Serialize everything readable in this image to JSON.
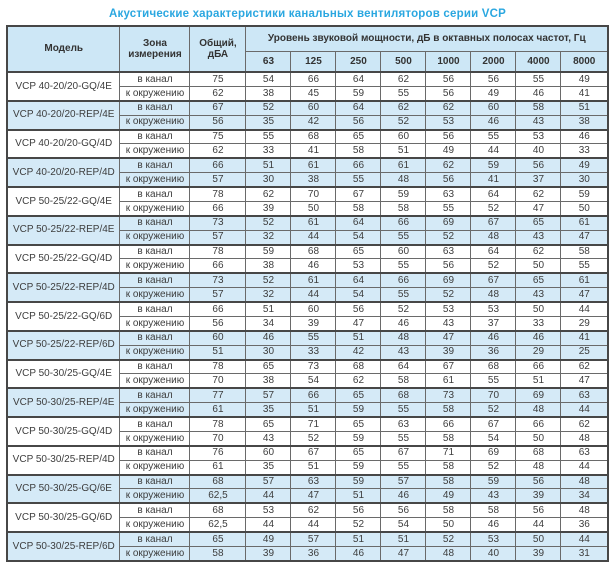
{
  "title": "Акустические характеристики канальных вентиляторов  серии VCP",
  "colors": {
    "accent": "#2aa7e0",
    "header_blue": "#cde7f6",
    "row_blue": "#d5eaf7",
    "border": "#6a6a6a",
    "text": "#3d3d3d"
  },
  "table": {
    "headers": {
      "model": "Модель",
      "zone": "Зона измерения",
      "total": "Общий, дБА",
      "band": "Уровень звуковой мощности, дБ в октавных полосах частот, Гц"
    },
    "freq_headers": [
      "63",
      "125",
      "250",
      "500",
      "1000",
      "2000",
      "4000",
      "8000"
    ],
    "zone_labels": [
      "в канал",
      "к окружению"
    ],
    "rows": [
      {
        "model": "VCP 40-20/20-GQ/4E",
        "shaded": false,
        "duct": {
          "total": "75",
          "bands": [
            54,
            66,
            64,
            62,
            56,
            56,
            55,
            49
          ]
        },
        "ambient": {
          "total": "62",
          "bands": [
            38,
            45,
            59,
            55,
            56,
            49,
            46,
            41
          ]
        }
      },
      {
        "model": "VCP 40-20/20-REP/4E",
        "shaded": true,
        "duct": {
          "total": "67",
          "bands": [
            52,
            60,
            64,
            62,
            62,
            60,
            58,
            51
          ]
        },
        "ambient": {
          "total": "56",
          "bands": [
            35,
            42,
            56,
            52,
            53,
            46,
            43,
            38
          ]
        }
      },
      {
        "model": "VCP 40-20/20-GQ/4D",
        "shaded": false,
        "duct": {
          "total": "75",
          "bands": [
            55,
            68,
            65,
            60,
            56,
            55,
            53,
            46
          ]
        },
        "ambient": {
          "total": "62",
          "bands": [
            33,
            41,
            58,
            51,
            49,
            44,
            40,
            33
          ]
        }
      },
      {
        "model": "VCP 40-20/20-REP/4D",
        "shaded": true,
        "duct": {
          "total": "66",
          "bands": [
            51,
            61,
            66,
            61,
            62,
            59,
            56,
            49
          ]
        },
        "ambient": {
          "total": "57",
          "bands": [
            30,
            38,
            55,
            48,
            56,
            41,
            37,
            30
          ]
        }
      },
      {
        "model": "VCP 50-25/22-GQ/4E",
        "shaded": false,
        "duct": {
          "total": "78",
          "bands": [
            62,
            70,
            67,
            59,
            63,
            64,
            62,
            59
          ]
        },
        "ambient": {
          "total": "66",
          "bands": [
            39,
            50,
            58,
            58,
            55,
            52,
            47,
            50
          ]
        }
      },
      {
        "model": "VCP 50-25/22-REP/4E",
        "shaded": true,
        "duct": {
          "total": "73",
          "bands": [
            52,
            61,
            64,
            66,
            69,
            67,
            65,
            61
          ]
        },
        "ambient": {
          "total": "57",
          "bands": [
            32,
            44,
            54,
            55,
            52,
            48,
            43,
            47
          ]
        }
      },
      {
        "model": "VCP 50-25/22-GQ/4D",
        "shaded": false,
        "duct": {
          "total": "78",
          "bands": [
            59,
            68,
            65,
            60,
            63,
            64,
            62,
            58
          ]
        },
        "ambient": {
          "total": "66",
          "bands": [
            38,
            46,
            53,
            55,
            56,
            52,
            50,
            55
          ]
        }
      },
      {
        "model": "VCP 50-25/22-REP/4D",
        "shaded": true,
        "duct": {
          "total": "73",
          "bands": [
            52,
            61,
            64,
            66,
            69,
            67,
            65,
            61
          ]
        },
        "ambient": {
          "total": "57",
          "bands": [
            32,
            44,
            54,
            55,
            52,
            48,
            43,
            47
          ]
        }
      },
      {
        "model": "VCP 50-25/22-GQ/6D",
        "shaded": false,
        "duct": {
          "total": "66",
          "bands": [
            51,
            60,
            56,
            52,
            53,
            53,
            50,
            44
          ]
        },
        "ambient": {
          "total": "56",
          "bands": [
            34,
            39,
            47,
            46,
            43,
            37,
            33,
            29
          ]
        }
      },
      {
        "model": "VCP 50-25/22-REP/6D",
        "shaded": true,
        "duct": {
          "total": "60",
          "bands": [
            46,
            55,
            51,
            48,
            47,
            46,
            46,
            41
          ]
        },
        "ambient": {
          "total": "51",
          "bands": [
            30,
            33,
            42,
            43,
            39,
            36,
            29,
            25
          ]
        }
      },
      {
        "model": "VCP 50-30/25-GQ/4E",
        "shaded": false,
        "duct": {
          "total": "78",
          "bands": [
            65,
            73,
            68,
            64,
            67,
            68,
            66,
            62
          ]
        },
        "ambient": {
          "total": "70",
          "bands": [
            38,
            54,
            62,
            58,
            61,
            55,
            51,
            47
          ]
        }
      },
      {
        "model": "VCP 50-30/25-REP/4E",
        "shaded": true,
        "duct": {
          "total": "77",
          "bands": [
            57,
            66,
            65,
            68,
            73,
            70,
            69,
            63
          ]
        },
        "ambient": {
          "total": "61",
          "bands": [
            35,
            51,
            59,
            55,
            58,
            52,
            48,
            44
          ]
        }
      },
      {
        "model": "VCP 50-30/25-GQ/4D",
        "shaded": false,
        "duct": {
          "total": "78",
          "bands": [
            65,
            71,
            65,
            63,
            66,
            67,
            66,
            62
          ]
        },
        "ambient": {
          "total": "70",
          "bands": [
            43,
            52,
            59,
            55,
            58,
            54,
            50,
            48
          ]
        }
      },
      {
        "model": "VCP 50-30/25-REP/4D",
        "shaded": false,
        "duct": {
          "total": "76",
          "bands": [
            60,
            67,
            65,
            67,
            71,
            69,
            68,
            63
          ]
        },
        "ambient": {
          "total": "61",
          "bands": [
            35,
            51,
            59,
            55,
            58,
            52,
            48,
            44
          ]
        }
      },
      {
        "model": "VCP 50-30/25-GQ/6E",
        "shaded": true,
        "duct": {
          "total": "68",
          "bands": [
            57,
            63,
            59,
            57,
            58,
            59,
            56,
            48
          ]
        },
        "ambient": {
          "total": "62,5",
          "bands": [
            44,
            47,
            51,
            46,
            49,
            43,
            39,
            34
          ]
        }
      },
      {
        "model": "VCP 50-30/25-GQ/6D",
        "shaded": false,
        "duct": {
          "total": "68",
          "bands": [
            53,
            62,
            56,
            56,
            58,
            58,
            56,
            48
          ]
        },
        "ambient": {
          "total": "62,5",
          "bands": [
            44,
            44,
            52,
            54,
            50,
            46,
            44,
            36
          ]
        }
      },
      {
        "model": "VCP 50-30/25-REP/6D",
        "shaded": true,
        "duct": {
          "total": "65",
          "bands": [
            49,
            57,
            51,
            51,
            52,
            53,
            50,
            44
          ]
        },
        "ambient": {
          "total": "58",
          "bands": [
            39,
            36,
            46,
            47,
            48,
            40,
            39,
            31
          ]
        }
      }
    ]
  }
}
